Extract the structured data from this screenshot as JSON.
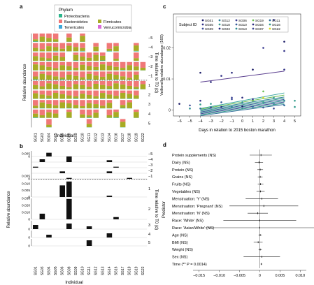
{
  "panel_letters": {
    "a": "a",
    "b": "b",
    "c": "c",
    "d": "d"
  },
  "colors": {
    "bacteroidetes": "#f07878",
    "firmicutes": "#a8ab24",
    "proteobacteria": "#2bb58b",
    "tenericutes": "#3da7d8",
    "verrucomicrobia": "#d86ad8",
    "bar_black": "#111111",
    "grid_dash": "#444444"
  },
  "individuals": [
    "SG01",
    "SG03",
    "SG04",
    "SG05",
    "SG06",
    "SG08",
    "SG09",
    "SG10",
    "SG11",
    "SG12",
    "SG13",
    "SG14",
    "SG16",
    "SG17",
    "SG18",
    "SG19",
    "SG22"
  ],
  "time_points": [
    "−5",
    "−4",
    "−3",
    "−2",
    "−1",
    "1",
    "2",
    "3",
    "4",
    "5"
  ],
  "panel_a": {
    "legend_title": "Phylum",
    "legend_items": [
      {
        "label": "Proteobacteria",
        "color_key": "proteobacteria"
      },
      {
        "label": "Firmicutes",
        "color_key": "firmicutes"
      },
      {
        "label": "Bacteroidetes",
        "color_key": "bacteroidetes"
      },
      {
        "label": "Tenericutes",
        "color_key": "tenericutes"
      },
      {
        "label": "Verrucomicrobia",
        "color_key": "verrucomicrobia"
      }
    ],
    "ylabel": "Relative abundance",
    "xlabel": "Individual",
    "right_label": "Time relative to T0 (d)",
    "present": [
      [
        1,
        1,
        1,
        1,
        0,
        1,
        0,
        1,
        0,
        0,
        0,
        0,
        0,
        0,
        0,
        0,
        0
      ],
      [
        1,
        1,
        1,
        1,
        1,
        1,
        1,
        1,
        0,
        1,
        0,
        1,
        1,
        0,
        0,
        1,
        0
      ],
      [
        1,
        1,
        1,
        1,
        1,
        0,
        1,
        1,
        1,
        1,
        1,
        0,
        1,
        0,
        0,
        1,
        0
      ],
      [
        1,
        1,
        1,
        1,
        1,
        1,
        1,
        1,
        1,
        1,
        1,
        1,
        1,
        1,
        1,
        1,
        1
      ],
      [
        1,
        1,
        1,
        1,
        1,
        1,
        1,
        1,
        1,
        1,
        1,
        1,
        1,
        1,
        1,
        1,
        0
      ],
      [
        1,
        1,
        1,
        1,
        1,
        1,
        1,
        1,
        1,
        1,
        1,
        1,
        1,
        1,
        1,
        1,
        1
      ],
      [
        1,
        1,
        1,
        1,
        1,
        1,
        1,
        1,
        1,
        1,
        1,
        1,
        1,
        1,
        1,
        1,
        0
      ],
      [
        1,
        1,
        1,
        1,
        1,
        1,
        1,
        1,
        1,
        1,
        1,
        1,
        0,
        1,
        1,
        0,
        0
      ],
      [
        1,
        1,
        1,
        1,
        0,
        1,
        0,
        1,
        1,
        1,
        0,
        1,
        1,
        0,
        0,
        1,
        0
      ],
      [
        0,
        0,
        1,
        0,
        0,
        0,
        0,
        0,
        1,
        0,
        0,
        0,
        0,
        1,
        0,
        0,
        0
      ]
    ]
  },
  "panel_b": {
    "ylabel": "Relative abundance",
    "xlabel": "Individual",
    "right_label": "Time relative to T0 (d)",
    "tick_labels": {
      "0": "0",
      "mid": "0.005",
      "top": "0.010"
    },
    "tall_ticks": [
      "0.030",
      "0.020",
      "0.010",
      "0"
    ],
    "values": [
      [
        0,
        0,
        0.004,
        0,
        0,
        0,
        0,
        0,
        0,
        0,
        0,
        0,
        0,
        0,
        0,
        0,
        0
      ],
      [
        0,
        0.003,
        0,
        0,
        0,
        0.006,
        0,
        0,
        0,
        0,
        0,
        0.002,
        0,
        0,
        0,
        0,
        0
      ],
      [
        0.001,
        0,
        0,
        0,
        0,
        0,
        0,
        0,
        0,
        0,
        0,
        0,
        0.001,
        0,
        0,
        0,
        0
      ],
      [
        0,
        0,
        0,
        0,
        0.002,
        0,
        0,
        0,
        0,
        0,
        0,
        0.002,
        0,
        0,
        0,
        0,
        0
      ],
      [
        0,
        0,
        0,
        0,
        0,
        0.001,
        0,
        0,
        0,
        0,
        0,
        0,
        0,
        0,
        0.001,
        0,
        0
      ],
      [
        0,
        0,
        0,
        0,
        0.009,
        0.012,
        0,
        0,
        0,
        0,
        0,
        0.001,
        0,
        0,
        0,
        0,
        0
      ],
      [
        0,
        0.01,
        0,
        0,
        0,
        0.036,
        0,
        0,
        0,
        0,
        0,
        0,
        0.004,
        0,
        0,
        0,
        0
      ],
      [
        0.003,
        0,
        0,
        0,
        0,
        0.004,
        0,
        0,
        0.002,
        0,
        0,
        0,
        0,
        0,
        0,
        0,
        0
      ],
      [
        0,
        0,
        0.002,
        0,
        0,
        0,
        0,
        0,
        0,
        0,
        0,
        0.003,
        0,
        0,
        0,
        0,
        0
      ],
      [
        0,
        0,
        0,
        0,
        0,
        0,
        0,
        0,
        0.004,
        0,
        0,
        0,
        0,
        0,
        0,
        0,
        0
      ]
    ]
  },
  "panel_c": {
    "legend_title": "Subject ID",
    "ylabel": "Veillonella relative abundance (16S)",
    "xlabel": "Days in relation to 2015 boston marathon",
    "x_ticks": [
      -6,
      -5,
      -4,
      -3,
      -2,
      -1,
      0,
      1,
      2,
      3,
      4,
      5
    ],
    "y_ticks": [
      {
        "value": 0,
        "label": "0"
      },
      {
        "value": 0.01,
        "label": "0.01"
      },
      {
        "value": 0.02,
        "label": "0.02"
      }
    ],
    "subjects": [
      {
        "id": "SG01",
        "color": "#1a1a66"
      },
      {
        "id": "SG05",
        "color": "#333388"
      },
      {
        "id": "SG09",
        "color": "#3f4f9a"
      },
      {
        "id": "SG12",
        "color": "#2f7f9a"
      },
      {
        "id": "SG18",
        "color": "#3a9f8f"
      },
      {
        "id": "SG03",
        "color": "#28287a"
      },
      {
        "id": "SG06",
        "color": "#3a3a90"
      },
      {
        "id": "SG10",
        "color": "#355a98"
      },
      {
        "id": "SG13",
        "color": "#2b8d8f"
      },
      {
        "id": "SG19",
        "color": "#6cbf55"
      },
      {
        "id": "SG04",
        "color": "#2e2e84"
      },
      {
        "id": "SG07",
        "color": "#404896"
      },
      {
        "id": "SG11",
        "color": "#306d9a"
      },
      {
        "id": "SG16",
        "color": "#2f9b8a"
      },
      {
        "id": "SG22",
        "color": "#d8d820"
      }
    ],
    "points": [
      {
        "x": -6,
        "y": 0.002,
        "c": "#1a1a66"
      },
      {
        "x": -5,
        "y": 0.0005,
        "c": "#2b8d8f"
      },
      {
        "x": -5,
        "y": 0.0015,
        "c": "#3f4f9a"
      },
      {
        "x": -4,
        "y": 0.012,
        "c": "#1a1a66"
      },
      {
        "x": -4,
        "y": 0.003,
        "c": "#333388"
      },
      {
        "x": -4,
        "y": 0.0005,
        "c": "#306d9a"
      },
      {
        "x": -4,
        "y": 0.0018,
        "c": "#2f9b8a"
      },
      {
        "x": -3,
        "y": 0.009,
        "c": "#28287a"
      },
      {
        "x": -3,
        "y": 0.002,
        "c": "#3a9f8f"
      },
      {
        "x": -3,
        "y": 0.0008,
        "c": "#3a3a90"
      },
      {
        "x": -2,
        "y": 0.011,
        "c": "#333388"
      },
      {
        "x": -2,
        "y": 0.0025,
        "c": "#355a98"
      },
      {
        "x": -2,
        "y": 0.001,
        "c": "#2e2e84"
      },
      {
        "x": -1,
        "y": 0.012,
        "c": "#28287a"
      },
      {
        "x": -1,
        "y": 0.004,
        "c": "#404896"
      },
      {
        "x": -1,
        "y": 0.001,
        "c": "#2f7f9a"
      },
      {
        "x": 0,
        "y": 0.0025,
        "c": "#2b8d8f"
      },
      {
        "x": 0,
        "y": 0.0005,
        "c": "#3a9f8f"
      },
      {
        "x": 0,
        "y": 0.0012,
        "c": "#1a1a66"
      },
      {
        "x": 1,
        "y": 0.013,
        "c": "#1a1a66"
      },
      {
        "x": 1,
        "y": 0.003,
        "c": "#6cbf55"
      },
      {
        "x": 1,
        "y": 0.0035,
        "c": "#333388"
      },
      {
        "x": 1,
        "y": 0.001,
        "c": "#306d9a"
      },
      {
        "x": 2,
        "y": 0.02,
        "c": "#3a3a90"
      },
      {
        "x": 2,
        "y": 0.004,
        "c": "#d8d820"
      },
      {
        "x": 2,
        "y": 0.0025,
        "c": "#2f9b8a"
      },
      {
        "x": 2,
        "y": 0.0008,
        "c": "#355a98"
      },
      {
        "x": 3,
        "y": 0.029,
        "c": "#28287a"
      },
      {
        "x": 3,
        "y": 0.004,
        "c": "#3a9f8f"
      },
      {
        "x": 3,
        "y": 0.002,
        "c": "#2f7f9a"
      },
      {
        "x": 3,
        "y": 0.0005,
        "c": "#404896"
      },
      {
        "x": 4,
        "y": 0.022,
        "c": "#1a1a66"
      },
      {
        "x": 4,
        "y": 0.019,
        "c": "#333388"
      },
      {
        "x": 4,
        "y": 0.013,
        "c": "#2e2e84"
      },
      {
        "x": 4,
        "y": 0.003,
        "c": "#2b8d8f"
      },
      {
        "x": 4,
        "y": 0.0015,
        "c": "#306d9a"
      },
      {
        "x": 5,
        "y": 0.003,
        "c": "#3a9f8f"
      },
      {
        "x": 5,
        "y": 0.001,
        "c": "#2f9b8a"
      },
      {
        "x": 2,
        "y": 0.006,
        "c": "#6cbf55"
      },
      {
        "x": -1,
        "y": 0.0035,
        "c": "#3f4f9a"
      },
      {
        "x": 0,
        "y": 0.004,
        "c": "#28287a"
      }
    ],
    "lines": [
      {
        "x1": -4,
        "y1": 0.009,
        "x2": 4,
        "y2": 0.0125,
        "c": "#5b3f8f"
      },
      {
        "x1": -4,
        "y1": 0.0005,
        "x2": 4,
        "y2": 0.0055,
        "c": "#3aa6a0"
      },
      {
        "x1": -4,
        "y1": 0.0003,
        "x2": 4,
        "y2": 0.0048,
        "c": "#6cbf55"
      },
      {
        "x1": -4,
        "y1": 0.0,
        "x2": 4,
        "y2": 0.0042,
        "c": "#2f7f9a"
      },
      {
        "x1": -4,
        "y1": -0.0003,
        "x2": 4,
        "y2": 0.0038,
        "c": "#3a9f8f"
      },
      {
        "x1": -4,
        "y1": -0.0006,
        "x2": 4,
        "y2": 0.0034,
        "c": "#355a98"
      },
      {
        "x1": -4,
        "y1": -0.0009,
        "x2": 4,
        "y2": 0.003,
        "c": "#2b8d8f"
      },
      {
        "x1": -4,
        "y1": -0.0012,
        "x2": 4,
        "y2": 0.0026,
        "c": "#404896"
      },
      {
        "x1": -4,
        "y1": -0.0015,
        "x2": 4,
        "y2": 0.0022,
        "c": "#2f9b8a"
      },
      {
        "x1": -4,
        "y1": -0.0018,
        "x2": 4,
        "y2": 0.0018,
        "c": "#306d9a"
      }
    ]
  },
  "panel_d": {
    "ylabel": "Predictor",
    "x_ticks": [
      {
        "value": -0.015,
        "label": "−0.015"
      },
      {
        "value": -0.01,
        "label": "−0.010"
      },
      {
        "value": -0.005,
        "label": "−0.005"
      },
      {
        "value": 0,
        "label": "0"
      },
      {
        "value": 0.005,
        "label": "0.005"
      },
      {
        "value": 0.01,
        "label": "0.010"
      }
    ],
    "predictors": [
      {
        "label": "Protein supplements (NS)",
        "est": 0.0003,
        "lo": -0.0025,
        "hi": 0.003
      },
      {
        "label": "Dairy (NS)",
        "est": -0.0002,
        "lo": -0.0012,
        "hi": 0.0008
      },
      {
        "label": "Protein (NS)",
        "est": 0.0001,
        "lo": -0.0006,
        "hi": 0.0008
      },
      {
        "label": "Grains (NS)",
        "est": 0.0001,
        "lo": -0.0005,
        "hi": 0.0007
      },
      {
        "label": "Fruits (NS)",
        "est": 0.0002,
        "lo": -0.0005,
        "hi": 0.0009
      },
      {
        "label": "Vegetables (NS)",
        "est": 0.0002,
        "lo": -0.0008,
        "hi": 0.0012
      },
      {
        "label": "Menstruation: 'Y' (NS)",
        "est": 0.0005,
        "lo": -0.0035,
        "hi": 0.0045
      },
      {
        "label": "Menstruation: 'Pregnant' (NS)",
        "est": 0.001,
        "lo": -0.0075,
        "hi": 0.0095
      },
      {
        "label": "Menstruation: 'N' (NS)",
        "est": -0.0005,
        "lo": -0.003,
        "hi": 0.002
      },
      {
        "label": "Race: 'White' (NS)",
        "est": 0.0,
        "lo": -0.009,
        "hi": 0.009
      },
      {
        "label": "Race: 'Asian/White' (NS)",
        "est": 0.0,
        "lo": -0.0135,
        "hi": 0.0135
      },
      {
        "label": "Age (NS)",
        "est": 0.0001,
        "lo": -0.0003,
        "hi": 0.0005
      },
      {
        "label": "BMI (NS)",
        "est": -0.0004,
        "lo": -0.0015,
        "hi": 0.0007
      },
      {
        "label": "Weight (NS)",
        "est": 0.0001,
        "lo": -0.0003,
        "hi": 0.0005
      },
      {
        "label": "Sex (NS)",
        "est": 0.0005,
        "lo": -0.004,
        "hi": 0.005
      },
      {
        "label": "Time (** P = 0.0014)",
        "est": 0.0004,
        "lo": 0.0002,
        "hi": 0.0006
      }
    ]
  },
  "chart_data": [
    {
      "type": "bar",
      "panel": "a",
      "stacked": true,
      "categories": [
        "SG01",
        "SG03",
        "SG04",
        "SG05",
        "SG06",
        "SG08",
        "SG09",
        "SG10",
        "SG11",
        "SG12",
        "SG13",
        "SG14",
        "SG16",
        "SG17",
        "SG18",
        "SG19",
        "SG22"
      ],
      "xlabel": "Individual",
      "ylabel": "Relative abundance",
      "facets": [
        "−5",
        "−4",
        "−3",
        "−2",
        "−1",
        "1",
        "2",
        "3",
        "4",
        "5"
      ],
      "series": [
        {
          "name": "Proteobacteria"
        },
        {
          "name": "Firmicutes"
        },
        {
          "name": "Bacteroidetes"
        },
        {
          "name": "Tenericutes"
        },
        {
          "name": "Verrucomicrobia"
        }
      ]
    },
    {
      "type": "bar",
      "panel": "b",
      "categories": [
        "SG01",
        "SG03",
        "SG04",
        "SG05",
        "SG06",
        "SG08",
        "SG09",
        "SG10",
        "SG11",
        "SG12",
        "SG13",
        "SG14",
        "SG16",
        "SG17",
        "SG18",
        "SG19",
        "SG22"
      ],
      "xlabel": "Individual",
      "ylabel": "Relative abundance",
      "facets": [
        "−5",
        "−4",
        "−3",
        "−2",
        "−1",
        "1",
        "2",
        "3",
        "4",
        "5"
      ]
    },
    {
      "type": "scatter",
      "panel": "c",
      "xlabel": "Days in relation to 2015 boston marathon",
      "ylabel": "Veillonella relative abundance (16S)",
      "xlim": [
        -6,
        5
      ],
      "ylim": [
        0,
        0.03
      ],
      "legend": "top-left"
    },
    {
      "type": "scatter",
      "panel": "d",
      "subtype": "coefficient-plot",
      "ylabel": "Predictor",
      "xlim": [
        -0.015,
        0.01
      ]
    }
  ]
}
